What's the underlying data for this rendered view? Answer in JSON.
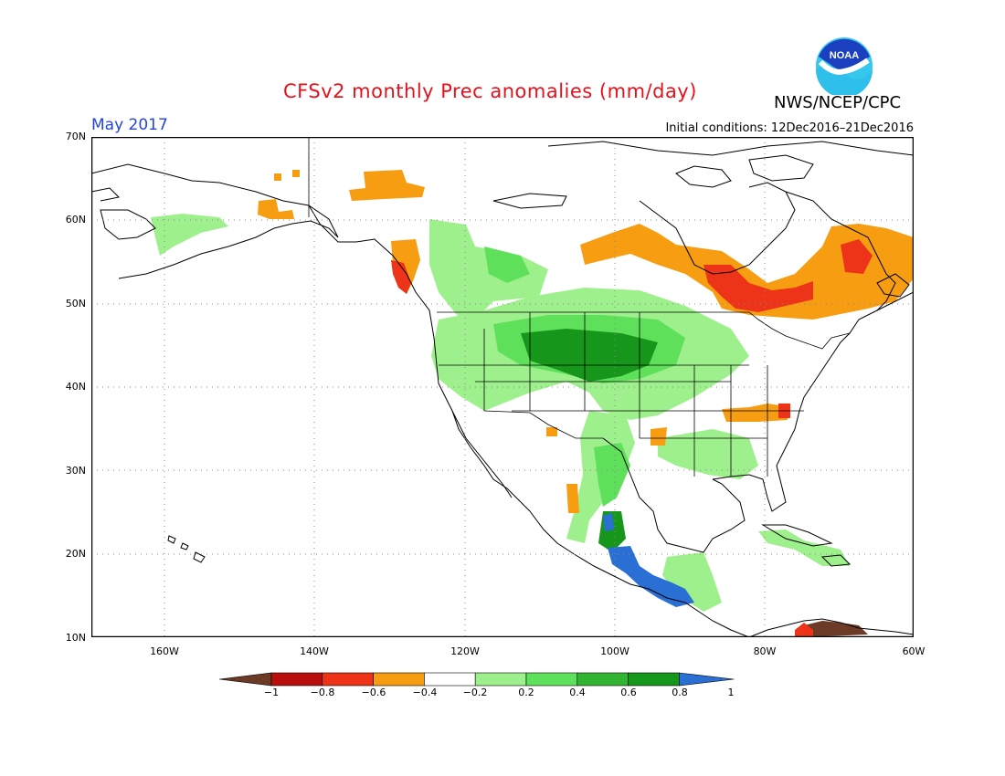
{
  "header": {
    "title": "CFSv2 monthly Prec anomalies (mm/day)",
    "month": "May 2017",
    "initial_conditions": "Initial conditions: 12Dec2016–21Dec2016",
    "agency": "NWS/NCEP/CPC",
    "logo_text": "NOAA"
  },
  "axes": {
    "lat_labels": [
      "70N",
      "60N",
      "50N",
      "40N",
      "30N",
      "20N",
      "10N"
    ],
    "lon_labels": [
      "160W",
      "140W",
      "120W",
      "100W",
      "80W",
      "60W"
    ]
  },
  "colorbar": {
    "labels": [
      "−1",
      "−0.8",
      "−0.6",
      "−0.4",
      "−0.2",
      "0.2",
      "0.4",
      "0.6",
      "0.8",
      "1"
    ],
    "colors": [
      "#6b3b26",
      "#b80d0d",
      "#ee3418",
      "#f79d12",
      "#ffffff",
      "#9ef08c",
      "#5fe05a",
      "#32b433",
      "#16961a",
      "#2a6fd4"
    ]
  },
  "anomaly_regions": [
    {
      "name": "northern-rockies-plains-wet",
      "category": "0.4",
      "color": "#5fe05a"
    },
    {
      "name": "north-central-plains-wet",
      "category": "0.8",
      "color": "#16961a"
    },
    {
      "name": "southern-mexico-very-wet",
      "category": "1",
      "color": "#2a6fd4"
    },
    {
      "name": "quebec-dry",
      "category": "-0.4",
      "color": "#f79d12"
    },
    {
      "name": "great-lakes-dry",
      "category": "-0.6",
      "color": "#ee3418"
    },
    {
      "name": "alaska-panhandle-dry",
      "category": "-0.6",
      "color": "#ee3418"
    },
    {
      "name": "yukon-dry",
      "category": "-0.4",
      "color": "#f79d12"
    },
    {
      "name": "venezuela-very-dry",
      "category": "-1",
      "color": "#6b3b26"
    }
  ]
}
